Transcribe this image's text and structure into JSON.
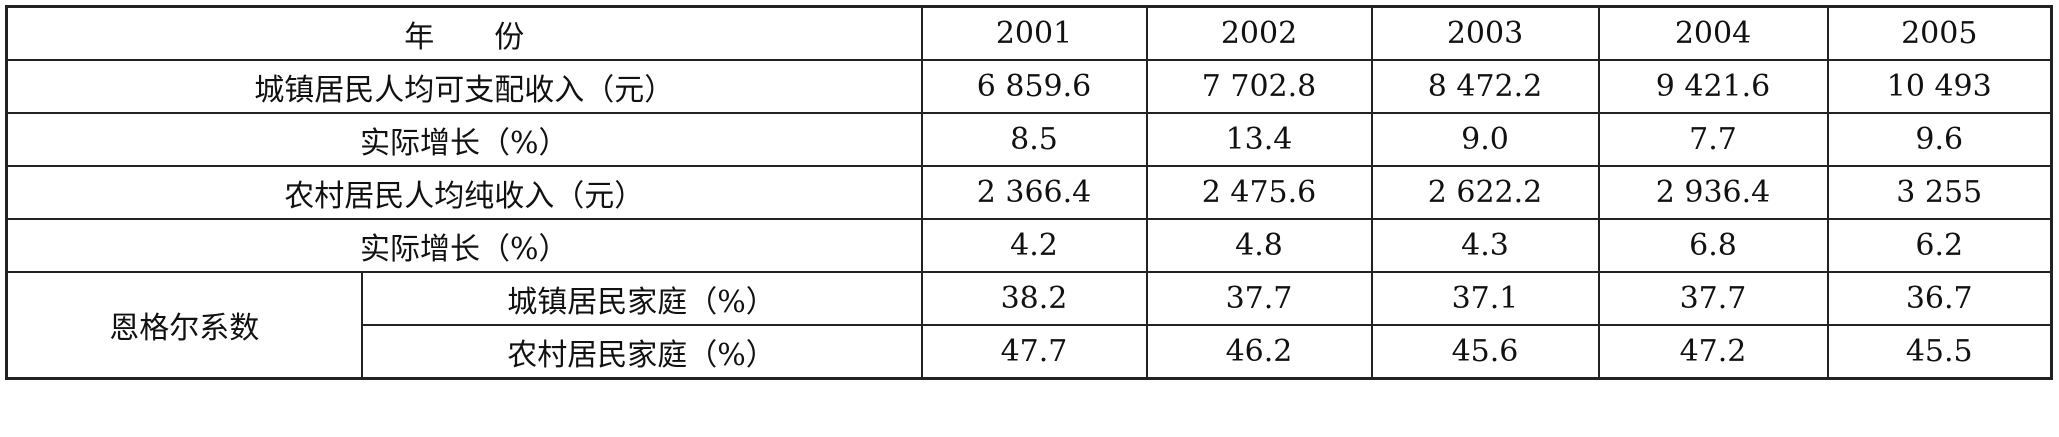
{
  "table": {
    "header": {
      "label": "年　　份",
      "years": [
        "2001",
        "2002",
        "2003",
        "2004",
        "2005"
      ]
    },
    "rows": [
      {
        "label": "城镇居民人均可支配收入（元）",
        "values": [
          "6 859.6",
          "7 702.8",
          "8 472.2",
          "9 421.6",
          "10 493"
        ]
      },
      {
        "label": "实际增长（%）",
        "values": [
          "8.5",
          "13.4",
          "9.0",
          "7.7",
          "9.6"
        ]
      },
      {
        "label": "农村居民人均纯收入（元）",
        "values": [
          "2 366.4",
          "2 475.6",
          "2 622.2",
          "2 936.4",
          "3 255"
        ]
      },
      {
        "label": "实际增长（%）",
        "values": [
          "4.2",
          "4.8",
          "4.3",
          "6.8",
          "6.2"
        ]
      }
    ],
    "group": {
      "label": "恩格尔系数",
      "rows": [
        {
          "label": "城镇居民家庭（%）",
          "values": [
            "38.2",
            "37.7",
            "37.1",
            "37.7",
            "36.7"
          ]
        },
        {
          "label": "农村居民家庭（%）",
          "values": [
            "47.7",
            "46.2",
            "45.6",
            "47.2",
            "45.5"
          ]
        }
      ]
    }
  }
}
